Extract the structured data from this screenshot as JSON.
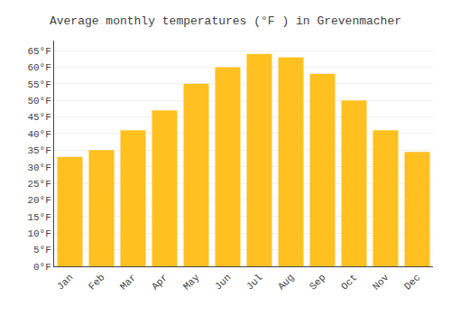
{
  "chart_data": {
    "type": "bar",
    "title": "Average monthly temperatures (°F ) in Grevenmacher",
    "categories": [
      "Jan",
      "Feb",
      "Mar",
      "Apr",
      "May",
      "Jun",
      "Jul",
      "Aug",
      "Sep",
      "Oct",
      "Nov",
      "Dec"
    ],
    "values": [
      33,
      35,
      41,
      47,
      55,
      60,
      64,
      63,
      58,
      50,
      41,
      34.5
    ],
    "color": "#FFC020",
    "ylim": [
      0,
      68
    ],
    "yticks": [
      {
        "value": 0,
        "label": "0°F"
      },
      {
        "value": 5,
        "label": "5°F"
      },
      {
        "value": 10,
        "label": "10°F"
      },
      {
        "value": 15,
        "label": "15°F"
      },
      {
        "value": 20,
        "label": "20°F"
      },
      {
        "value": 25,
        "label": "25°F"
      },
      {
        "value": 30,
        "label": "30°F"
      },
      {
        "value": 35,
        "label": "35°F"
      },
      {
        "value": 40,
        "label": "40°F"
      },
      {
        "value": 45,
        "label": "45°F"
      },
      {
        "value": 50,
        "label": "50°F"
      },
      {
        "value": 55,
        "label": "55°F"
      },
      {
        "value": 60,
        "label": "60°F"
      },
      {
        "value": 65,
        "label": "65°F"
      }
    ],
    "grid": true
  }
}
